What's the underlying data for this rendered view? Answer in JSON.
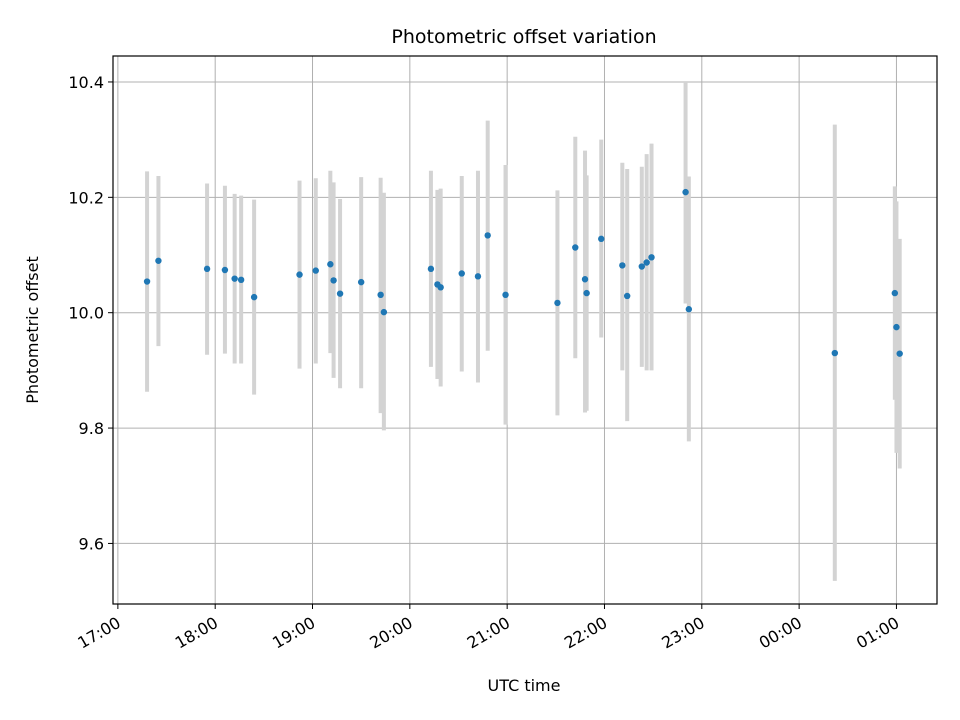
{
  "chart_data": {
    "type": "scatter",
    "title": "Photometric offset variation",
    "xlabel": "UTC time",
    "ylabel": "Photometric offset",
    "x_axis_type": "time",
    "x_ticks": [
      "17:00",
      "18:00",
      "19:00",
      "20:00",
      "21:00",
      "22:00",
      "23:00",
      "00:00",
      "01:00"
    ],
    "x_range": [
      "16:57",
      "01:25"
    ],
    "y_ticks": [
      "9.6",
      "9.8",
      "10.0",
      "10.2",
      "10.4"
    ],
    "ylim": [
      9.495,
      10.445
    ],
    "grid": true,
    "marker_color": "#1f77b4",
    "errorbar_color": "#d3d3d3",
    "series": [
      {
        "points": [
          {
            "x": "17:18",
            "y": 10.054,
            "low": 9.863,
            "high": 10.245
          },
          {
            "x": "17:25",
            "y": 10.09,
            "low": 9.942,
            "high": 10.237
          },
          {
            "x": "17:55",
            "y": 10.076,
            "low": 9.927,
            "high": 10.224
          },
          {
            "x": "18:06",
            "y": 10.074,
            "low": 9.929,
            "high": 10.22
          },
          {
            "x": "18:12",
            "y": 10.059,
            "low": 9.912,
            "high": 10.206
          },
          {
            "x": "18:16",
            "y": 10.057,
            "low": 9.912,
            "high": 10.203
          },
          {
            "x": "18:24",
            "y": 10.027,
            "low": 9.858,
            "high": 10.196
          },
          {
            "x": "18:52",
            "y": 10.066,
            "low": 9.903,
            "high": 10.229
          },
          {
            "x": "19:02",
            "y": 10.073,
            "low": 9.912,
            "high": 10.233
          },
          {
            "x": "19:11",
            "y": 10.084,
            "low": 9.93,
            "high": 10.246
          },
          {
            "x": "19:13",
            "y": 10.056,
            "low": 9.887,
            "high": 10.226
          },
          {
            "x": "19:17",
            "y": 10.033,
            "low": 9.869,
            "high": 10.197
          },
          {
            "x": "19:30",
            "y": 10.053,
            "low": 9.869,
            "high": 10.235
          },
          {
            "x": "19:42",
            "y": 10.031,
            "low": 9.826,
            "high": 10.234
          },
          {
            "x": "19:44",
            "y": 10.001,
            "low": 9.796,
            "high": 10.208
          },
          {
            "x": "20:13",
            "y": 10.076,
            "low": 9.906,
            "high": 10.246
          },
          {
            "x": "20:17",
            "y": 10.049,
            "low": 9.885,
            "high": 10.213
          },
          {
            "x": "20:19",
            "y": 10.044,
            "low": 9.872,
            "high": 10.215
          },
          {
            "x": "20:32",
            "y": 10.068,
            "low": 9.898,
            "high": 10.237
          },
          {
            "x": "20:42",
            "y": 10.063,
            "low": 9.879,
            "high": 10.246
          },
          {
            "x": "20:48",
            "y": 10.134,
            "low": 9.934,
            "high": 10.333
          },
          {
            "x": "20:59",
            "y": 10.031,
            "low": 9.806,
            "high": 10.256
          },
          {
            "x": "21:31",
            "y": 10.017,
            "low": 9.822,
            "high": 10.212
          },
          {
            "x": "21:42",
            "y": 10.113,
            "low": 9.921,
            "high": 10.305
          },
          {
            "x": "21:48",
            "y": 10.058,
            "low": 9.827,
            "high": 10.281
          },
          {
            "x": "21:49",
            "y": 10.034,
            "low": 9.83,
            "high": 10.238
          },
          {
            "x": "21:58",
            "y": 10.128,
            "low": 9.957,
            "high": 10.3
          },
          {
            "x": "22:11",
            "y": 10.082,
            "low": 9.9,
            "high": 10.26
          },
          {
            "x": "22:14",
            "y": 10.029,
            "low": 9.812,
            "high": 10.249
          },
          {
            "x": "22:23",
            "y": 10.08,
            "low": 9.906,
            "high": 10.253
          },
          {
            "x": "22:26",
            "y": 10.087,
            "low": 9.9,
            "high": 10.275
          },
          {
            "x": "22:29",
            "y": 10.096,
            "low": 9.9,
            "high": 10.293
          },
          {
            "x": "22:50",
            "y": 10.209,
            "low": 10.016,
            "high": 10.4
          },
          {
            "x": "22:52",
            "y": 10.006,
            "low": 9.777,
            "high": 10.236
          },
          {
            "x": "00:22",
            "y": 9.93,
            "low": 9.535,
            "high": 10.326
          },
          {
            "x": "00:59",
            "y": 10.034,
            "low": 9.849,
            "high": 10.219
          },
          {
            "x": "01:00",
            "y": 9.975,
            "low": 9.757,
            "high": 10.193
          },
          {
            "x": "01:02",
            "y": 9.929,
            "low": 9.73,
            "high": 10.128
          }
        ]
      }
    ]
  }
}
